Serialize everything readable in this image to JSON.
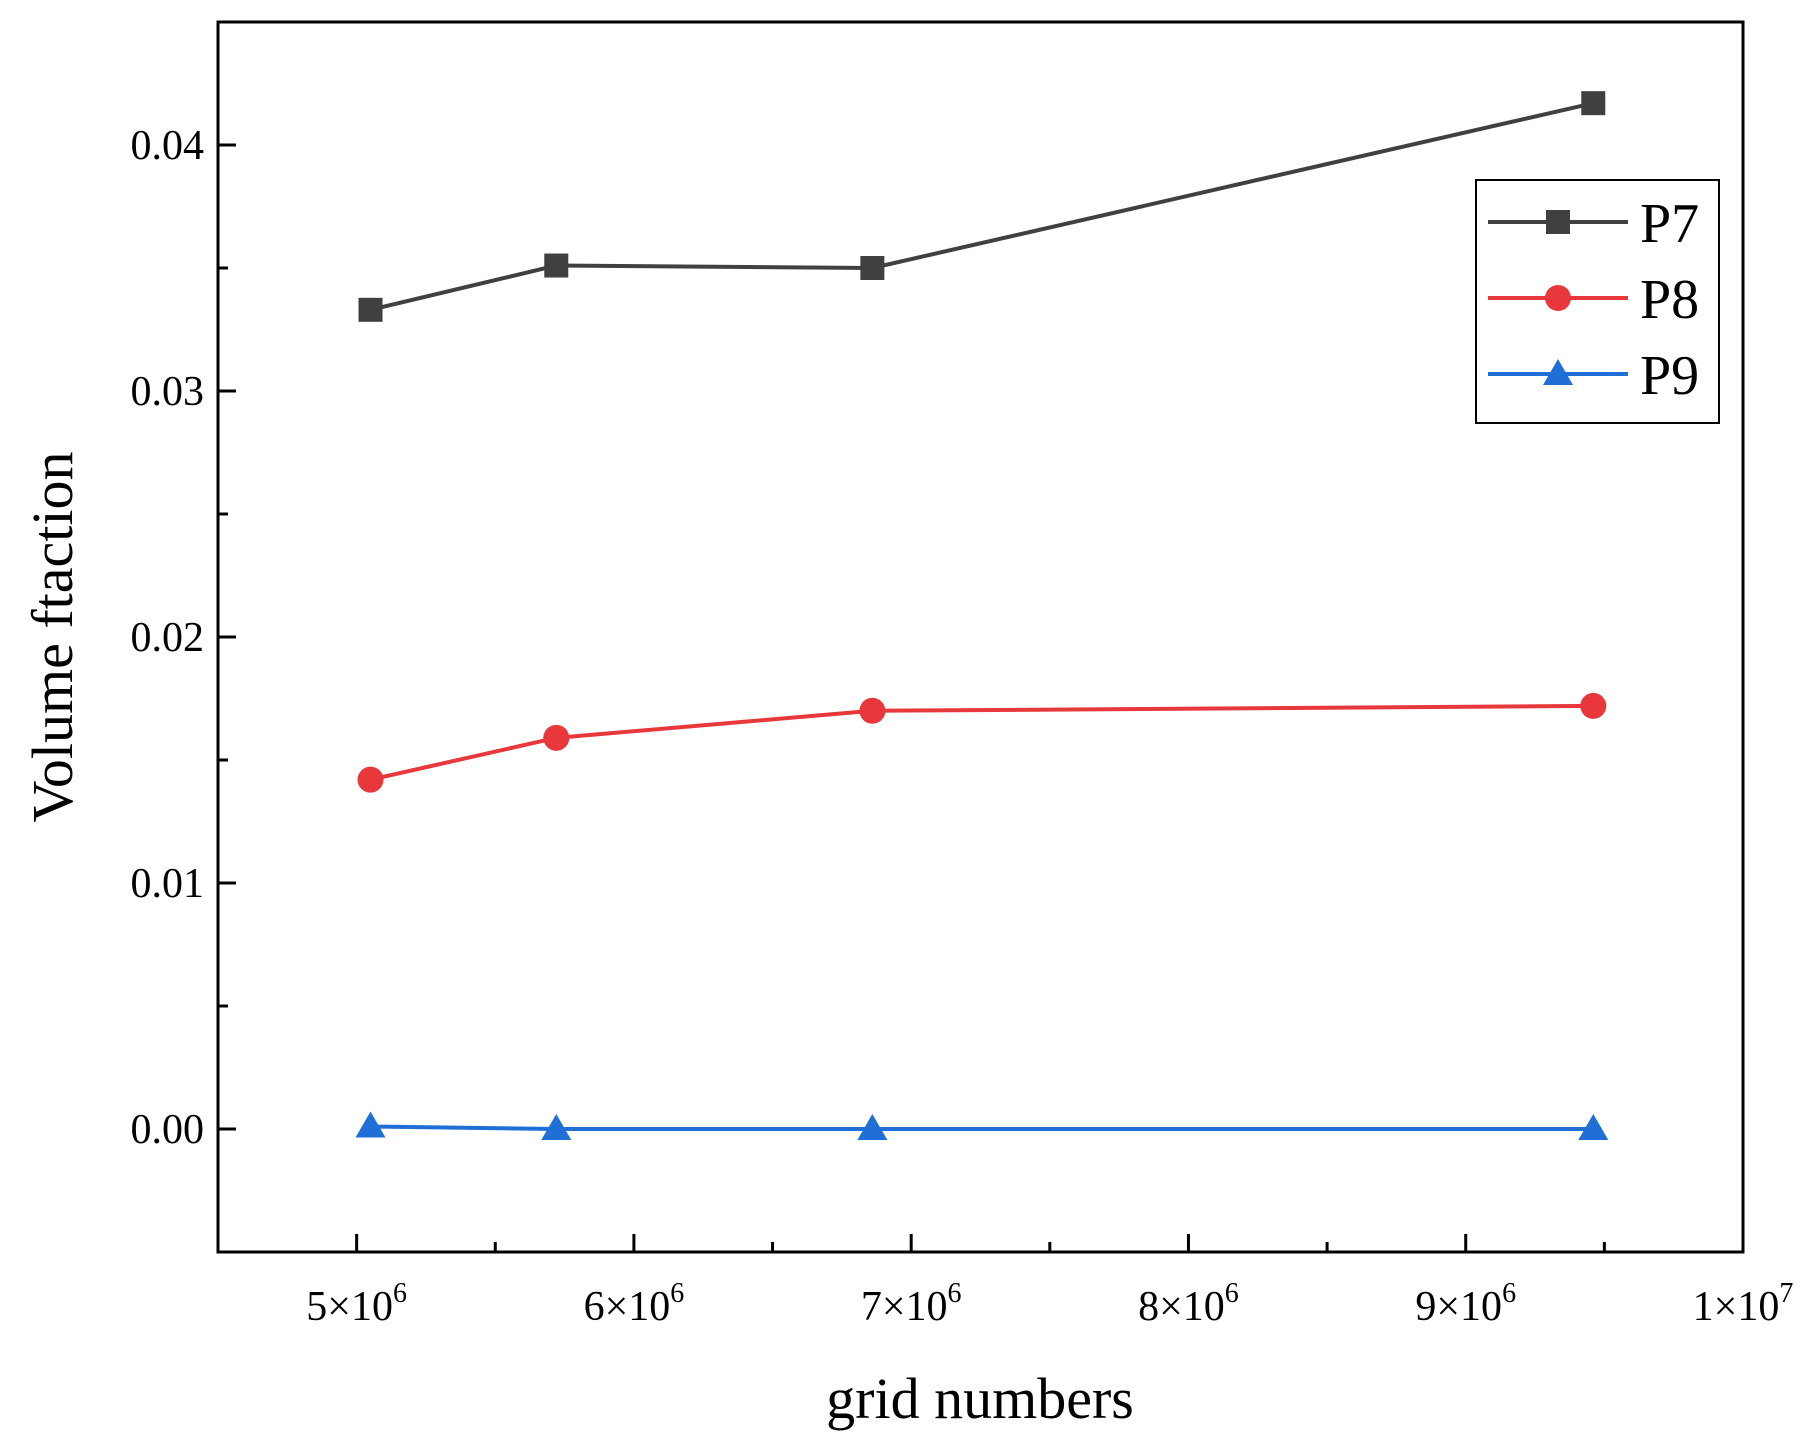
{
  "chart_data": {
    "type": "line",
    "title": "",
    "xlabel": "grid numbers",
    "ylabel": "Volume ftaction",
    "xlim": [
      4500000,
      10000000
    ],
    "ylim": [
      -0.005,
      0.045
    ],
    "grid": false,
    "legend_position": "top-right",
    "x_ticks": [
      {
        "value": 5000000,
        "base": "5×10",
        "exp": "6"
      },
      {
        "value": 6000000,
        "base": "6×10",
        "exp": "6"
      },
      {
        "value": 7000000,
        "base": "7×10",
        "exp": "6"
      },
      {
        "value": 8000000,
        "base": "8×10",
        "exp": "6"
      },
      {
        "value": 9000000,
        "base": "9×10",
        "exp": "6"
      },
      {
        "value": 10000000,
        "base": "1×10",
        "exp": "7"
      }
    ],
    "y_ticks": [
      {
        "value": 0.0,
        "label": "0.00"
      },
      {
        "value": 0.01,
        "label": "0.01"
      },
      {
        "value": 0.02,
        "label": "0.02"
      },
      {
        "value": 0.03,
        "label": "0.03"
      },
      {
        "value": 0.04,
        "label": "0.04"
      }
    ],
    "x": [
      5050000,
      5720000,
      6860000,
      9460000
    ],
    "series": [
      {
        "name": "P7",
        "color": "#404040",
        "marker": "square",
        "values": [
          0.0333,
          0.0351,
          0.035,
          0.0417
        ]
      },
      {
        "name": "P8",
        "color": "#e8383b",
        "marker": "circle",
        "values": [
          0.0142,
          0.0159,
          0.017,
          0.0172
        ]
      },
      {
        "name": "P9",
        "color": "#1f6fd6",
        "marker": "triangle",
        "values": [
          0.0001,
          0.0,
          0.0,
          0.0
        ]
      }
    ]
  }
}
